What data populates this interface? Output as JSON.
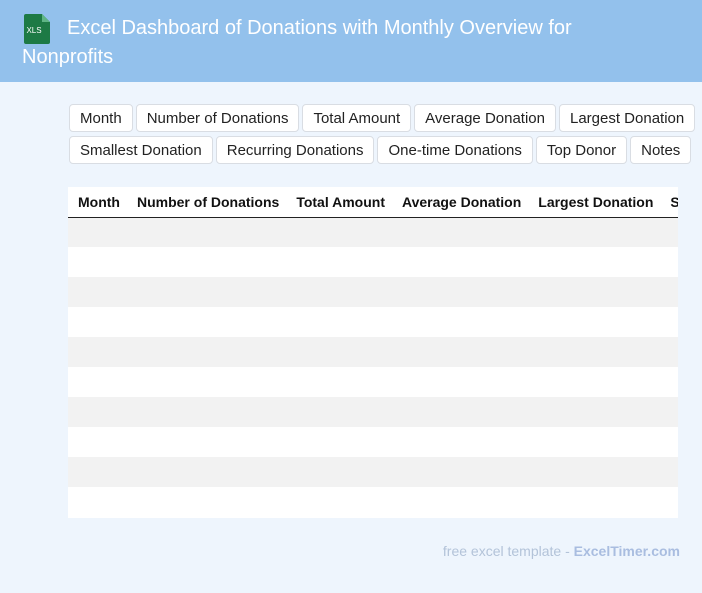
{
  "header": {
    "icon_label": "XLS",
    "title": "Excel Dashboard of Donations with Monthly Overview for Nonprofits"
  },
  "toolbar": {
    "rows": [
      [
        "Month",
        "Number of Donations",
        "Total Amount",
        "Average Donation",
        "Largest Donation"
      ],
      [
        "Smallest Donation",
        "Recurring Donations",
        "One-time Donations",
        "Top Donor",
        "Notes"
      ]
    ]
  },
  "table": {
    "columns": [
      "Month",
      "Number of Donations",
      "Total Amount",
      "Average Donation",
      "Largest Donation",
      "Smallest Donation"
    ]
  },
  "footer": {
    "text": "free excel template - ",
    "link": "ExcelTimer.com"
  }
}
